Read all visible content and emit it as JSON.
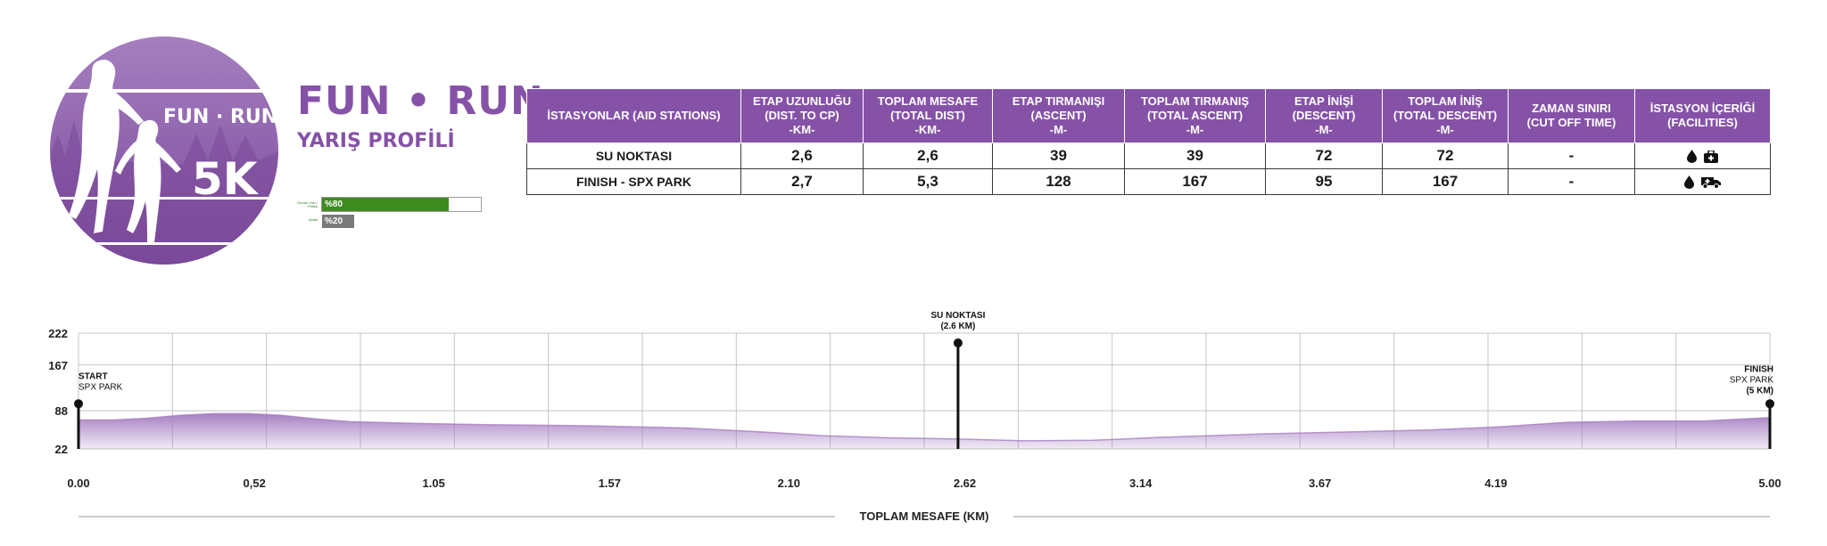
{
  "header": {
    "logo": {
      "name": "fun-run-5k-logo",
      "text_top": "FUN · RUN",
      "text_big": "5K",
      "colors": {
        "circle": "#7a4899",
        "circle_light": "#a57fc0",
        "silhouette": "#ffffff"
      }
    },
    "title": "FUN • RUN",
    "subtitle": "YARIŞ PROFİLİ"
  },
  "surface": [
    {
      "label": "Orman Yolu / Patika",
      "value": "%80",
      "fraction": 0.8,
      "color": "#3f8a1f"
    },
    {
      "label": "Asfalt",
      "value": "%20",
      "fraction": 0.2,
      "color": "#7a7a7a"
    }
  ],
  "aid_table": {
    "headers": [
      [
        "İSTASYONLAR (AID STATIONS)"
      ],
      [
        "ETAP UZUNLUĞU",
        "(DIST. TO CP)",
        "-KM-"
      ],
      [
        "TOPLAM MESAFE",
        "(TOTAL DIST)",
        "-KM-"
      ],
      [
        "ETAP TIRMANIŞI",
        "(ASCENT)",
        "-M-"
      ],
      [
        "TOPLAM TIRMANIŞ",
        "(TOTAL ASCENT)",
        "-M-"
      ],
      [
        "ETAP İNİŞİ",
        "(DESCENT)",
        "-M-"
      ],
      [
        "TOPLAM İNİŞ",
        "(TOTAL DESCENT)",
        "-M-"
      ],
      [
        "ZAMAN SINIRI",
        "(CUT OFF TIME)"
      ],
      [
        "İSTASYON İÇERİĞİ",
        "(FACILITIES)"
      ]
    ],
    "rows": [
      {
        "cells": [
          "SU NOKTASI",
          "2,6",
          "2,6",
          "39",
          "39",
          "72",
          "72",
          "-"
        ],
        "facilities": [
          "water-icon",
          "first-aid-icon"
        ]
      },
      {
        "cells": [
          "FINISH - SPX PARK",
          "2,7",
          "5,3",
          "128",
          "167",
          "95",
          "167",
          "-"
        ],
        "facilities": [
          "water-icon",
          "ambulance-icon"
        ]
      }
    ]
  },
  "chart_data": {
    "type": "area",
    "title": "",
    "xlabel": "TOPLAM MESAFE (KM)",
    "ylabel": "",
    "xlim": [
      0,
      5
    ],
    "ylim": [
      22,
      222
    ],
    "x_ticks": [
      "0.00",
      "0,52",
      "1.05",
      "1.57",
      "2.10",
      "2.62",
      "3.14",
      "3.67",
      "4.19",
      "5.00"
    ],
    "x_tick_values": [
      0,
      0.52,
      1.05,
      1.57,
      2.1,
      2.62,
      3.14,
      3.67,
      4.19,
      5.0
    ],
    "y_ticks": [
      "222",
      "167",
      "88",
      "22"
    ],
    "y_tick_values": [
      222,
      167,
      88,
      22
    ],
    "grid": true,
    "fill_color": "#a77fc2",
    "series": [
      {
        "x": [
          0,
          0.1,
          0.2,
          0.3,
          0.4,
          0.5,
          0.6,
          0.7,
          0.8,
          1.0,
          1.2,
          1.5,
          1.8,
          2.0,
          2.2,
          2.4,
          2.6,
          2.8,
          3.0,
          3.2,
          3.5,
          3.8,
          4.0,
          4.2,
          4.4,
          4.6,
          4.8,
          5.0
        ],
        "y": [
          72,
          72,
          75,
          80,
          83,
          83,
          80,
          74,
          69,
          66,
          64,
          62,
          58,
          52,
          45,
          41,
          39,
          36,
          37,
          42,
          48,
          52,
          55,
          60,
          68,
          70,
          70,
          76
        ]
      }
    ],
    "stations": [
      {
        "x": 0,
        "y": 100,
        "name": "START",
        "sub": "SPX PARK"
      },
      {
        "x": 2.6,
        "y": 205,
        "name": "SU NOKTASI",
        "sub": "(2.6 KM)"
      },
      {
        "x": 5,
        "y": 100,
        "name": "FINISH",
        "sub": "SPX PARK",
        "sub2": "(5 KM)"
      }
    ]
  }
}
